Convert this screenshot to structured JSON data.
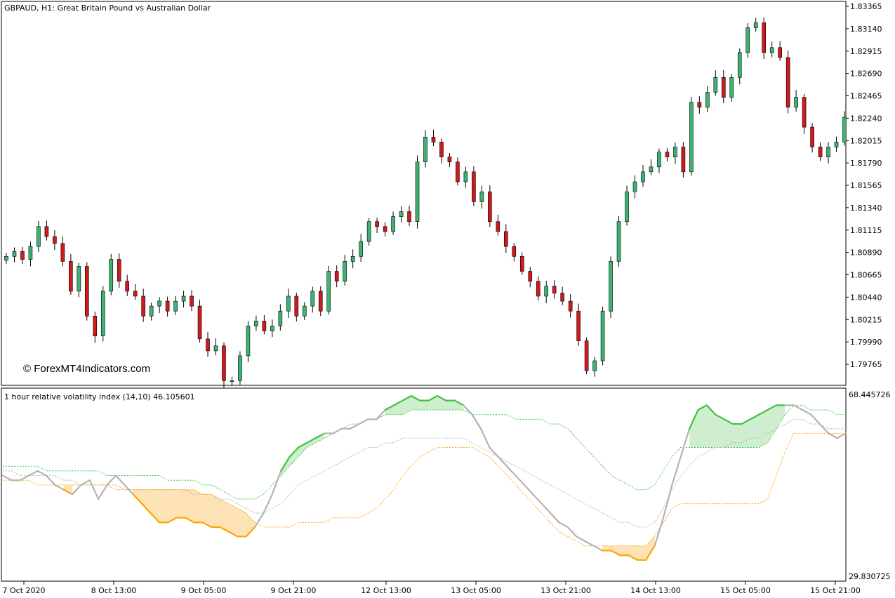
{
  "header": {
    "symbol_label": "GBPAUD, H1:  Great Britain Pound vs Australian Dollar"
  },
  "watermark": "© ForexMT4Indicators.com",
  "indicator": {
    "label": "1 hour relative volatility index (14,10) 46.105601",
    "scale_max_label": "68.445726",
    "scale_min_label": "29.830725"
  },
  "colors": {
    "bull": "#3cb371",
    "bear": "#d11a1a",
    "up_line": "#3cc43c",
    "down_line": "#ffa500",
    "up_fill": "#cfeecf",
    "down_fill": "#fde2b5",
    "neutral_line": "#b3b3b3"
  },
  "chart_data": [
    {
      "type": "candlestick",
      "title": "GBPAUD, H1:  Great Britain Pound vs Australian Dollar",
      "y_ticks": [
        "1.83365",
        "1.83140",
        "1.82915",
        "1.82690",
        "1.82465",
        "1.82240",
        "1.82015",
        "1.81790",
        "1.81565",
        "1.81340",
        "1.81115",
        "1.80890",
        "1.80665",
        "1.80440",
        "1.80215",
        "1.79990",
        "1.79765"
      ],
      "ylim": [
        1.7966,
        1.8342
      ],
      "x_ticks": [
        "7 Oct 2020",
        "8 Oct 13:00",
        "9 Oct 05:00",
        "9 Oct 21:00",
        "12 Oct 13:00",
        "13 Oct 05:00",
        "13 Oct 21:00",
        "14 Oct 13:00",
        "15 Oct 05:00",
        "15 Oct 21:00"
      ],
      "close_path": [
        1.8085,
        1.809,
        1.8082,
        1.8095,
        1.8115,
        1.8105,
        1.8098,
        1.808,
        1.805,
        1.8075,
        1.8025,
        1.8005,
        1.805,
        1.8082,
        1.806,
        1.805,
        1.8045,
        1.8025,
        1.8035,
        1.804,
        1.803,
        1.804,
        1.8045,
        1.8035,
        1.8002,
        1.799,
        1.7995,
        1.796,
        1.796,
        1.7985,
        1.8015,
        1.802,
        1.801,
        1.8015,
        1.803,
        1.8045,
        1.8025,
        1.8035,
        1.805,
        1.803,
        1.807,
        1.806,
        1.808,
        1.8085,
        1.81,
        1.812,
        1.8115,
        1.811,
        1.8125,
        1.813,
        1.812,
        1.818,
        1.8205,
        1.82,
        1.8185,
        1.818,
        1.816,
        1.817,
        1.814,
        1.815,
        1.812,
        1.811,
        1.8095,
        1.8085,
        1.807,
        1.806,
        1.8045,
        1.8055,
        1.8048,
        1.804,
        1.803,
        1.8,
        1.797,
        1.798,
        1.803,
        1.808,
        1.812,
        1.815,
        1.816,
        1.817,
        1.8175,
        1.819,
        1.8185,
        1.8195,
        1.817,
        1.824,
        1.8235,
        1.825,
        1.8265,
        1.8245,
        1.8265,
        1.829,
        1.8315,
        1.832,
        1.829,
        1.8295,
        1.8285,
        1.8235,
        1.8245,
        1.8215,
        1.8195,
        1.8185,
        1.8195,
        1.82,
        1.8225
      ]
    },
    {
      "type": "line",
      "title": "1 hour relative volatility index (14,10) 46.105601",
      "ylim": [
        29.830725,
        68.445726
      ],
      "series": [
        {
          "values": [
            51,
            50,
            50,
            51,
            52,
            51,
            49,
            48,
            47,
            49,
            50,
            46,
            49,
            51,
            49,
            47,
            45,
            43,
            41,
            41,
            42,
            42,
            41,
            41,
            40,
            40,
            39,
            38,
            38,
            40,
            43,
            47,
            52,
            55,
            57,
            58,
            59,
            60,
            60,
            61,
            61,
            62,
            63,
            63,
            65,
            66,
            67,
            68,
            67,
            67,
            68,
            67,
            67,
            66,
            64,
            61,
            57,
            55,
            53,
            51,
            49,
            47,
            45,
            43,
            41,
            40,
            38,
            37,
            36,
            35,
            35,
            34,
            34,
            33,
            33,
            36,
            42,
            49,
            55,
            61,
            65,
            66,
            64,
            63,
            62,
            62,
            63,
            64,
            65,
            66,
            66,
            66,
            65,
            64,
            62,
            60,
            59,
            60
          ]
        },
        {
          "values": [
            52,
            52,
            51,
            51,
            51,
            51,
            51,
            50,
            50,
            49,
            49,
            49,
            49,
            49,
            48,
            48,
            48,
            48,
            48,
            48,
            48,
            48,
            47,
            47,
            47,
            46,
            46,
            45,
            44,
            43,
            43,
            44,
            45,
            47,
            49,
            50,
            51,
            52,
            53,
            54,
            55,
            56,
            57,
            57,
            58,
            58,
            59,
            59,
            59,
            59,
            59,
            59,
            59,
            59,
            58,
            57,
            56,
            55,
            54,
            53,
            52,
            51,
            50,
            49,
            48,
            47,
            46,
            45,
            44,
            43,
            42,
            41,
            41,
            40,
            40,
            41,
            44,
            48,
            51,
            53,
            55,
            56,
            57,
            57,
            58,
            58,
            59,
            59,
            60,
            61,
            62,
            63,
            63,
            62,
            62,
            61,
            61,
            61
          ]
        },
        {
          "values": [
            53,
            53,
            53,
            53,
            53,
            52,
            52,
            52,
            52,
            52,
            52,
            52,
            51,
            51,
            51,
            51,
            51,
            51,
            51,
            50,
            50,
            50,
            50,
            49,
            49,
            48,
            47,
            46,
            46,
            46,
            47,
            49,
            51,
            53,
            55,
            57,
            58,
            59,
            60,
            61,
            62,
            62,
            63,
            63,
            64,
            64,
            64,
            65,
            65,
            65,
            65,
            65,
            65,
            65,
            64,
            64,
            64,
            64,
            64,
            63,
            63,
            63,
            63,
            62,
            62,
            61,
            59,
            57,
            55,
            53,
            51,
            50,
            49,
            48,
            48,
            49,
            52,
            55,
            57,
            57,
            57,
            57,
            57,
            57,
            57,
            57,
            57,
            57,
            58,
            61,
            64,
            66,
            66,
            65,
            65,
            65,
            64,
            64
          ]
        },
        {
          "values": [
            50,
            50,
            50,
            50,
            49,
            49,
            49,
            49,
            49,
            49,
            49,
            49,
            49,
            48,
            48,
            48,
            48,
            48,
            48,
            48,
            48,
            48,
            48,
            47,
            47,
            46,
            45,
            44,
            43,
            41,
            40,
            40,
            40,
            40,
            41,
            41,
            41,
            41,
            42,
            42,
            42,
            42,
            43,
            44,
            46,
            48,
            51,
            53,
            55,
            56,
            57,
            57,
            57,
            57,
            57,
            56,
            55,
            53,
            51,
            49,
            47,
            45,
            43,
            41,
            39,
            38,
            37,
            36,
            36,
            36,
            36,
            36,
            36,
            36,
            36,
            38,
            41,
            44,
            45,
            45,
            45,
            45,
            45,
            45,
            45,
            45,
            45,
            45,
            46,
            51,
            56,
            60,
            60,
            60,
            60,
            60,
            60,
            60
          ]
        }
      ]
    }
  ]
}
